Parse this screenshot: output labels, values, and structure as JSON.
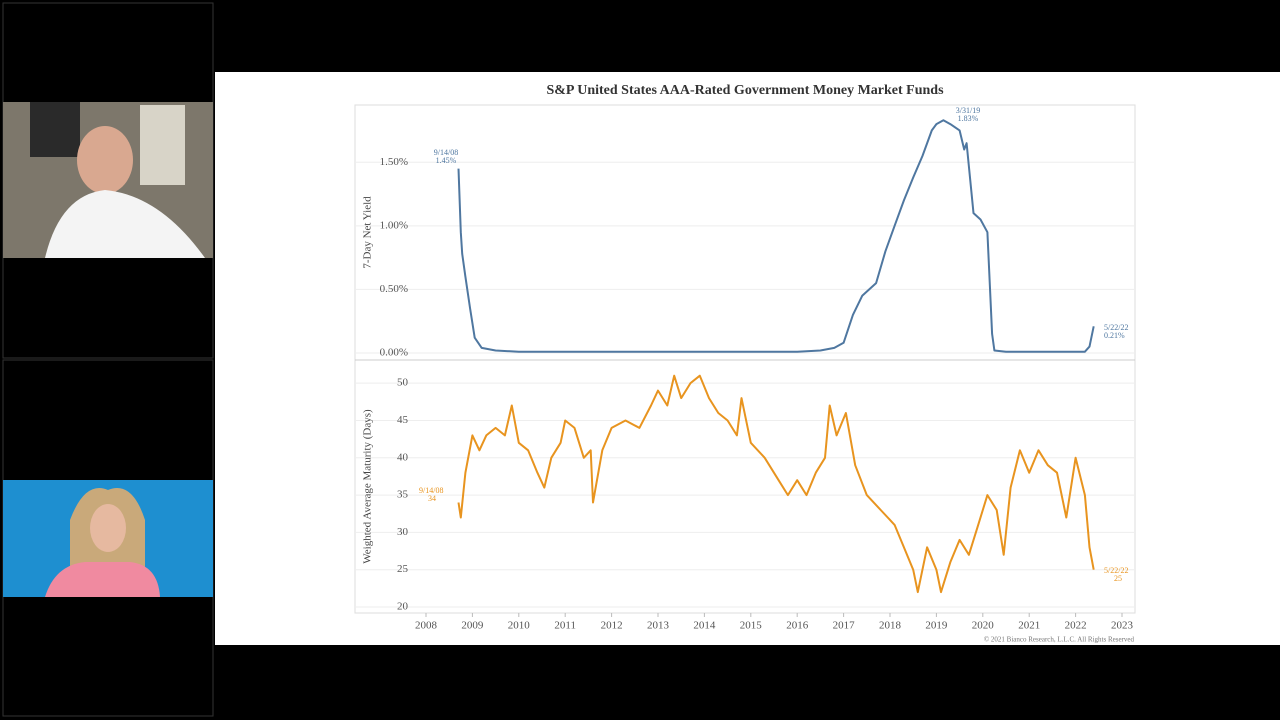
{
  "chart_data": [
    {
      "type": "line",
      "title": "S&P United States AAA-Rated Government Money Market Funds",
      "y_label": "7-Day Net Yield",
      "xlim": [
        2006.47,
        2023.28
      ],
      "ylim": [
        -0.055,
        1.95
      ],
      "yticks": [
        {
          "value": 0,
          "label": "0.00%"
        },
        {
          "value": 0.5,
          "label": "0.50%"
        },
        {
          "value": 1,
          "label": "1.00%"
        },
        {
          "value": 1.5,
          "label": "1.50%"
        }
      ],
      "grid": true,
      "annotations": [
        "9/14/08",
        "1.45%",
        "3/31/19",
        "1.83%",
        "5/22/22",
        "0.21%"
      ],
      "series": [
        {
          "color": "#4f77a0",
          "x": [
            2008.7,
            2008.75,
            2008.78,
            2008.85,
            2008.95,
            2009.05,
            2009.2,
            2009.5,
            2010,
            2012,
            2014,
            2016,
            2016.5,
            2016.8,
            2017,
            2017.2,
            2017.4,
            2017.7,
            2017.9,
            2018.1,
            2018.3,
            2018.5,
            2018.7,
            2018.9,
            2019.0,
            2019.15,
            2019.3,
            2019.5,
            2019.6,
            2019.65,
            2019.8,
            2019.95,
            2020.1,
            2020.2,
            2020.25,
            2020.5,
            2022.2,
            2022.3,
            2022.39
          ],
          "values": [
            1.45,
            0.95,
            0.78,
            0.6,
            0.35,
            0.12,
            0.04,
            0.02,
            0.01,
            0.01,
            0.01,
            0.01,
            0.02,
            0.04,
            0.08,
            0.3,
            0.45,
            0.55,
            0.8,
            1.0,
            1.2,
            1.38,
            1.55,
            1.75,
            1.8,
            1.83,
            1.8,
            1.75,
            1.6,
            1.65,
            1.1,
            1.05,
            0.95,
            0.15,
            0.02,
            0.01,
            0.01,
            0.05,
            0.21
          ]
        }
      ]
    },
    {
      "type": "line",
      "y_label": "Weighted Average Maturity (Days)",
      "xlim": [
        2006.47,
        2023.28
      ],
      "ylim": [
        19.2,
        53.1
      ],
      "xticks": [
        2008,
        2009,
        2010,
        2011,
        2012,
        2013,
        2014,
        2015,
        2016,
        2017,
        2018,
        2019,
        2020,
        2021,
        2022,
        2023
      ],
      "yticks": [
        20,
        25,
        30,
        35,
        40,
        45,
        50
      ],
      "grid": true,
      "annotations": [
        "9/14/08",
        "34",
        "5/22/22",
        "25"
      ],
      "footnote": "© 2021 Bianco Research, L.L.C. All Rights Reserved",
      "series": [
        {
          "color": "#e8941f",
          "x": [
            2008.7,
            2008.75,
            2008.85,
            2009,
            2009.15,
            2009.3,
            2009.5,
            2009.7,
            2009.85,
            2010,
            2010.2,
            2010.4,
            2010.55,
            2010.7,
            2010.9,
            2011,
            2011.2,
            2011.4,
            2011.55,
            2011.6,
            2011.8,
            2012,
            2012.3,
            2012.6,
            2012.85,
            2013,
            2013.2,
            2013.35,
            2013.5,
            2013.7,
            2013.9,
            2014.1,
            2014.3,
            2014.5,
            2014.7,
            2014.8,
            2015,
            2015.3,
            2015.6,
            2015.8,
            2016,
            2016.2,
            2016.4,
            2016.6,
            2016.7,
            2016.85,
            2017.05,
            2017.25,
            2017.5,
            2017.8,
            2018.1,
            2018.3,
            2018.5,
            2018.6,
            2018.8,
            2019,
            2019.1,
            2019.3,
            2019.5,
            2019.7,
            2019.9,
            2020.1,
            2020.3,
            2020.45,
            2020.6,
            2020.8,
            2021,
            2021.2,
            2021.4,
            2021.6,
            2021.8,
            2022,
            2022.2,
            2022.3,
            2022.39
          ],
          "values": [
            34,
            32,
            38,
            43,
            41,
            43,
            44,
            43,
            47,
            42,
            41,
            38,
            36,
            40,
            42,
            45,
            44,
            40,
            41,
            34,
            41,
            44,
            45,
            44,
            47,
            49,
            47,
            51,
            48,
            50,
            51,
            48,
            46,
            45,
            43,
            48,
            42,
            40,
            37,
            35,
            37,
            35,
            38,
            40,
            47,
            43,
            46,
            39,
            35,
            33,
            31,
            28,
            25,
            22,
            28,
            25,
            22,
            26,
            29,
            27,
            31,
            35,
            33,
            27,
            36,
            41,
            38,
            41,
            39,
            38,
            32,
            40,
            35,
            28,
            25
          ]
        }
      ]
    }
  ]
}
